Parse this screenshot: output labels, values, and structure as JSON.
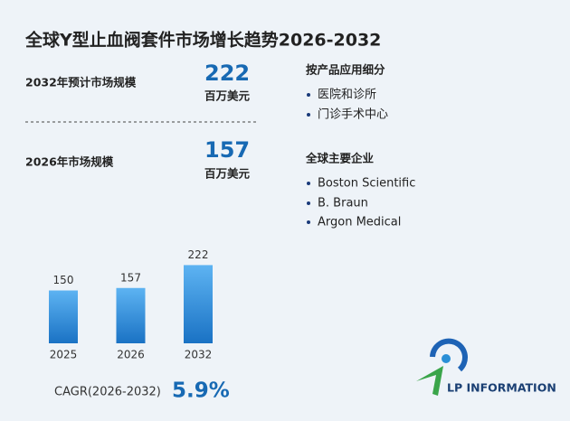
{
  "title": "全球Y型止血阀套件市场增长趋势2026-2032",
  "forecast": {
    "label": "2032年预计市场规模",
    "value": "222",
    "unit": "百万美元"
  },
  "current": {
    "label": "2026年市场规模",
    "value": "157",
    "unit": "百万美元"
  },
  "segments": {
    "heading": "按产品应用细分",
    "items": [
      "医院和诊所",
      "门诊手术中心"
    ]
  },
  "companies": {
    "heading": "全球主要企业",
    "items": [
      "Boston Scientific",
      "B. Braun",
      "Argon Medical"
    ]
  },
  "cagr": {
    "label": "CAGR(2026-2032)",
    "value": "5.9%"
  },
  "logo": "LP INFORMATION",
  "chart_data": {
    "type": "bar",
    "categories": [
      "2025",
      "2026",
      "2032"
    ],
    "values": [
      150,
      157,
      222
    ]
  }
}
